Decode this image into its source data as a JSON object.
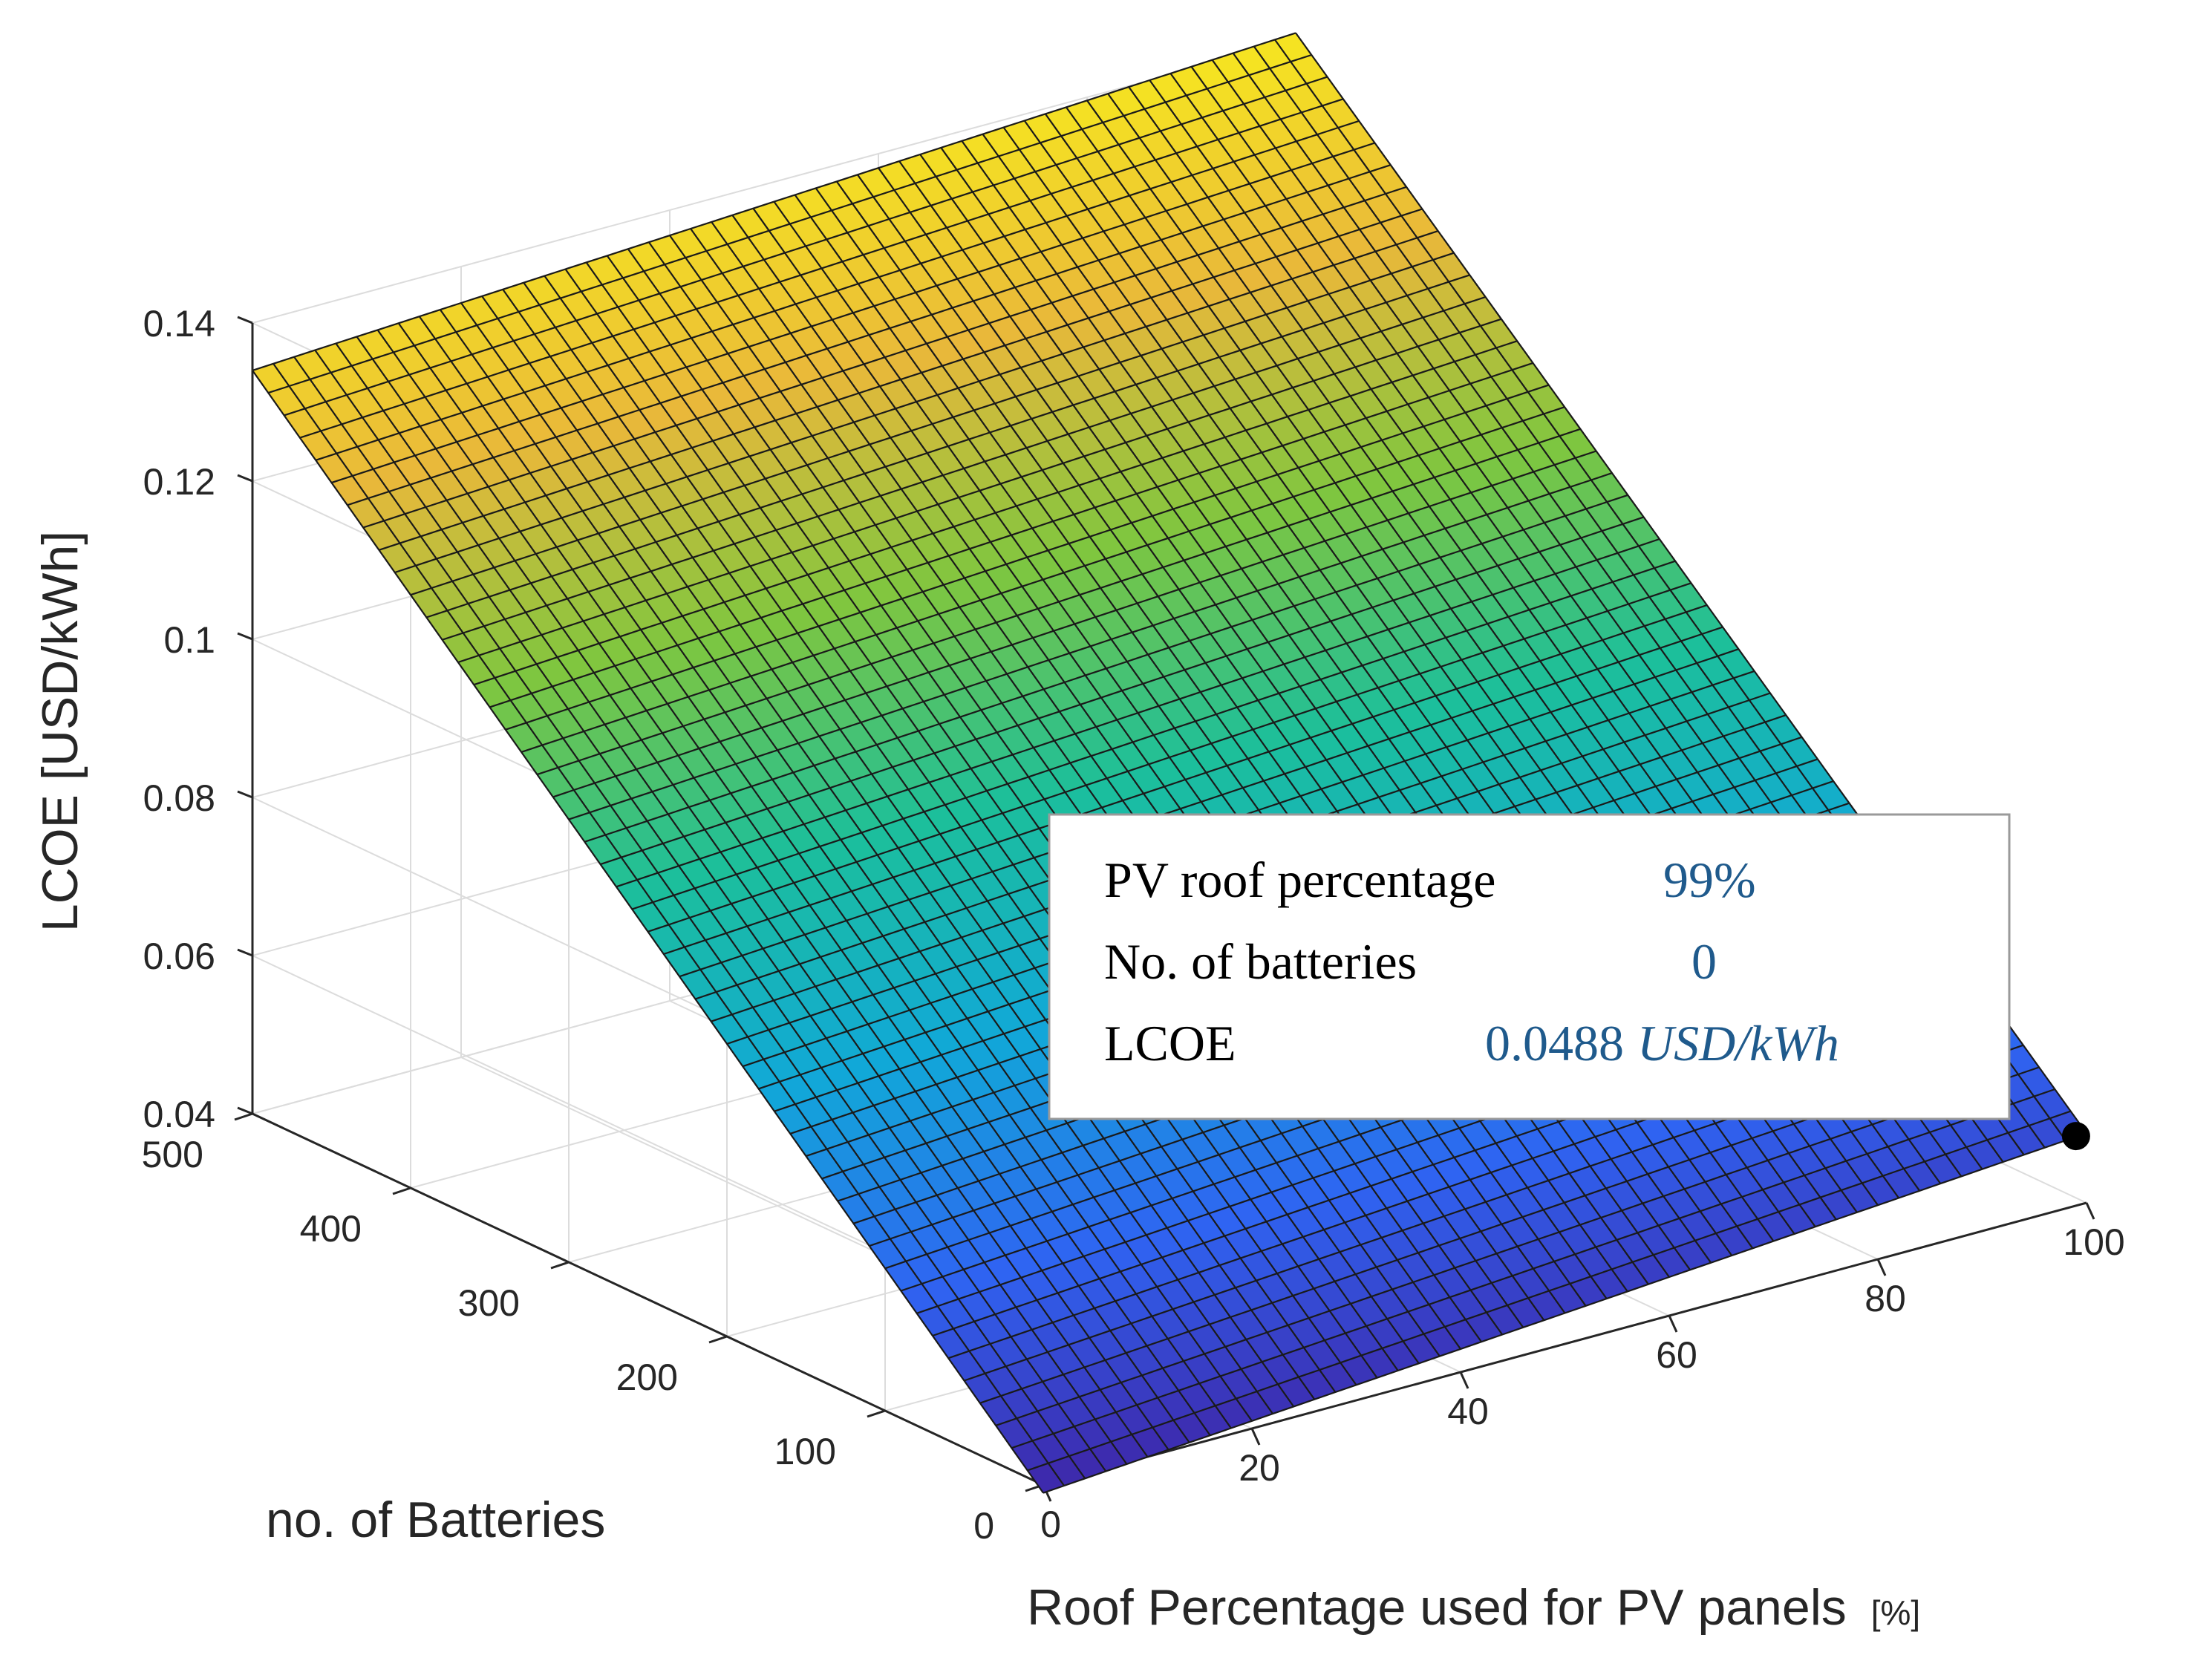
{
  "chart_data": {
    "type": "surface3d",
    "title": "",
    "xlabel": "Roof Percentage used for PV panels",
    "xlabel_unit": "[%]",
    "ylabel": "no. of Batteries",
    "zlabel": "LCOE [USD/kWh]",
    "x_range": [
      0,
      100
    ],
    "y_range": [
      0,
      500
    ],
    "z_range": [
      0.04,
      0.14
    ],
    "x_ticks": [
      "0",
      "20",
      "40",
      "60",
      "80",
      "100"
    ],
    "y_ticks": [
      "0",
      "100",
      "200",
      "300",
      "400",
      "500"
    ],
    "z_ticks": [
      "0.04",
      "0.06",
      "0.08",
      "0.1",
      "0.12",
      "0.14"
    ],
    "surface_corners": [
      {
        "x": 0,
        "y": 0,
        "z": 0.039
      },
      {
        "x": 100,
        "y": 0,
        "z": 0.0488
      },
      {
        "x": 0,
        "y": 500,
        "z": 0.134
      },
      {
        "x": 100,
        "y": 500,
        "z": 0.141
      }
    ],
    "mesh_divisions": 50,
    "colormap": [
      "#3e26a8",
      "#2f64f2",
      "#11a8d8",
      "#1cbf9b",
      "#7fc63f",
      "#e9b83a",
      "#f6e620"
    ],
    "datatip": {
      "rows": [
        {
          "label": "PV roof percentage",
          "value": "99%"
        },
        {
          "label": "No. of batteries",
          "value": "0"
        },
        {
          "label": "LCOE",
          "value": "0.0488",
          "unit": "USD/kWh"
        }
      ],
      "point": {
        "x": 99,
        "y": 0,
        "z": 0.0488
      }
    }
  }
}
